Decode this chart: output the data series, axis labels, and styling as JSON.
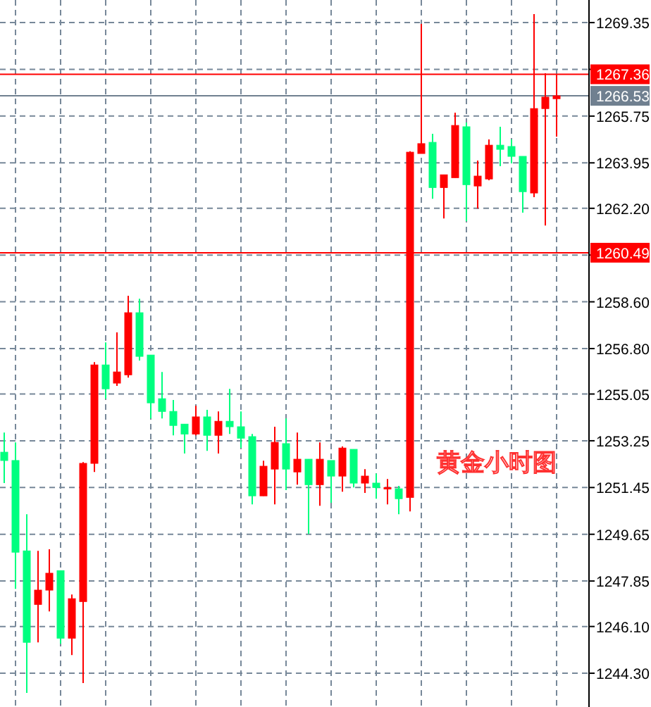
{
  "chart_data": {
    "type": "candlestick",
    "categories": [
      null,
      null,
      null,
      null,
      null,
      null,
      null,
      null,
      null,
      null,
      null,
      null,
      null,
      null,
      null,
      null,
      null,
      null,
      null,
      null,
      null,
      null,
      null,
      null,
      null,
      null,
      null,
      null,
      null,
      null,
      null,
      null,
      null,
      null,
      null,
      null,
      null,
      null,
      null,
      null,
      null,
      null,
      null,
      null,
      null,
      null,
      null,
      null,
      null,
      null
    ],
    "ohlc": [
      [
        1252.81,
        1253.57,
        1251.62,
        1252.49
      ],
      [
        1252.49,
        1253.19,
        1247.55,
        1248.96
      ],
      [
        1249.01,
        1250.42,
        1243.54,
        1245.49
      ],
      [
        1246.95,
        1249.01,
        1245.49,
        1247.5
      ],
      [
        1247.5,
        1249.07,
        1246.68,
        1248.15
      ],
      [
        1248.25,
        1248.25,
        1245.43,
        1245.65
      ],
      [
        1245.65,
        1247.33,
        1245.0,
        1247.17
      ],
      [
        1247.06,
        1252.43,
        1243.92,
        1252.38
      ],
      [
        1252.38,
        1256.28,
        1252.05,
        1256.17
      ],
      [
        1256.17,
        1257.04,
        1254.87,
        1255.25
      ],
      [
        1255.47,
        1257.42,
        1255.36,
        1255.9
      ],
      [
        1255.79,
        1258.83,
        1255.68,
        1258.18
      ],
      [
        1258.18,
        1258.72,
        1256.34,
        1256.5
      ],
      [
        1256.55,
        1256.55,
        1254.11,
        1254.71
      ],
      [
        1254.87,
        1255.9,
        1254.11,
        1254.38
      ],
      [
        1254.38,
        1254.82,
        1253.46,
        1253.84
      ],
      [
        1253.89,
        1253.89,
        1252.76,
        1253.51
      ],
      [
        1253.51,
        1254.6,
        1253.46,
        1254.17
      ],
      [
        1254.17,
        1254.44,
        1252.86,
        1253.46
      ],
      [
        1253.46,
        1254.38,
        1252.76,
        1254.0
      ],
      [
        1254.0,
        1255.25,
        1253.51,
        1253.79
      ],
      [
        1253.79,
        1254.38,
        1252.97,
        1253.35
      ],
      [
        1253.41,
        1253.51,
        1250.8,
        1251.13
      ],
      [
        1251.13,
        1252.48,
        1251.13,
        1252.27
      ],
      [
        1252.16,
        1253.79,
        1250.8,
        1253.19
      ],
      [
        1253.14,
        1254.11,
        1251.35,
        1252.16
      ],
      [
        1252.05,
        1253.57,
        1251.56,
        1252.54
      ],
      [
        1252.54,
        1252.54,
        1249.66,
        1251.56
      ],
      [
        1251.56,
        1253.19,
        1250.75,
        1252.54
      ],
      [
        1252.49,
        1252.49,
        1250.86,
        1251.89
      ],
      [
        1251.89,
        1253.03,
        1251.29,
        1252.97
      ],
      [
        1252.92,
        1252.92,
        1251.45,
        1251.62
      ],
      [
        1251.62,
        1252.16,
        1251.24,
        1251.89
      ],
      [
        1251.62,
        1251.99,
        1251.02,
        1251.45
      ],
      [
        1251.4,
        1251.78,
        1250.8,
        1251.45
      ],
      [
        1251.4,
        1251.51,
        1250.42,
        1251.02
      ],
      [
        1251.07,
        1264.4,
        1250.53,
        1264.36
      ],
      [
        1264.31,
        1269.3,
        1264.31,
        1264.69
      ],
      [
        1264.74,
        1265.07,
        1262.57,
        1263.0
      ],
      [
        1263.0,
        1263.49,
        1261.81,
        1263.49
      ],
      [
        1263.38,
        1265.88,
        1263.38,
        1265.39
      ],
      [
        1265.34,
        1265.5,
        1261.7,
        1263.11
      ],
      [
        1263.06,
        1264.04,
        1262.19,
        1263.44
      ],
      [
        1263.33,
        1264.85,
        1263.28,
        1264.63
      ],
      [
        1264.63,
        1265.34,
        1263.82,
        1264.47
      ],
      [
        1264.58,
        1264.85,
        1263.93,
        1264.2
      ],
      [
        1264.2,
        1264.2,
        1262.03,
        1262.84
      ],
      [
        1262.79,
        1269.68,
        1262.63,
        1266.04
      ],
      [
        1266.04,
        1267.4,
        1261.54,
        1266.48
      ],
      [
        1266.42,
        1267.34,
        1264.96,
        1266.53
      ]
    ],
    "colors": [
      "#00ff7f",
      "#00ff7f",
      "#00ff7f",
      "#ff0000",
      "#ff0000",
      "#00ff7f",
      "#ff0000",
      "#ff0000",
      "#ff0000",
      "#00ff7f",
      "#ff0000",
      "#ff0000",
      "#00ff7f",
      "#00ff7f",
      "#00ff7f",
      "#00ff7f",
      "#00ff7f",
      "#ff0000",
      "#00ff7f",
      "#ff0000",
      "#00ff7f",
      "#00ff7f",
      "#00ff7f",
      "#ff0000",
      "#ff0000",
      "#00ff7f",
      "#ff0000",
      "#00ff7f",
      "#ff0000",
      "#00ff7f",
      "#ff0000",
      "#00ff7f",
      "#ff0000",
      "#00ff7f",
      "#ff0000",
      "#00ff7f",
      "#ff0000",
      "#ff0000",
      "#00ff7f",
      "#ff0000",
      "#ff0000",
      "#00ff7f",
      "#ff0000",
      "#ff0000",
      "#00ff7f",
      "#00ff7f",
      "#00ff7f",
      "#ff0000",
      "#ff0000",
      "#ff0000"
    ],
    "ylim": [
      1243.0,
      1270.22
    ],
    "yticks": [
      {
        "value": 1244.3,
        "label": "1244.30"
      },
      {
        "value": 1246.1,
        "label": "1246.10"
      },
      1247.85,
      1249.65,
      1251.45,
      1253.25,
      1255.05,
      {
        "value": 1256.8,
        "label": "1256.80"
      },
      {
        "value": 1258.6,
        "label": "1258.60"
      },
      {
        "value": 1260.4,
        "label": null
      },
      {
        "value": 1262.2,
        "label": "1262.20"
      },
      1263.95,
      1265.75,
      {
        "value": 1267.55,
        "label": null
      },
      1269.35
    ],
    "ref_lines": [
      {
        "axis": "y",
        "value": 1267.36,
        "label": "1267.36",
        "color": "#ff0000"
      },
      {
        "axis": "y",
        "value": 1266.53,
        "label": "1266.53",
        "color": "#708090"
      },
      {
        "axis": "y",
        "value": 1260.49,
        "label": "1260.49",
        "color": "#ff0000"
      }
    ],
    "annotations": [
      "黄金小时图"
    ],
    "grid": true,
    "tick_labels": "y"
  }
}
